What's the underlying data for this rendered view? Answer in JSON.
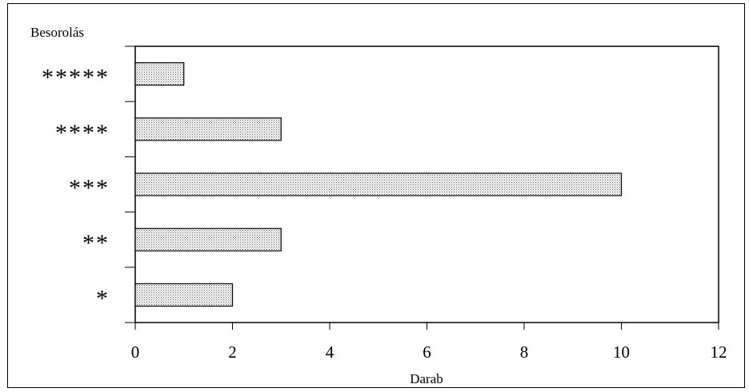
{
  "chart_data": {
    "type": "bar",
    "orientation": "horizontal",
    "title": "",
    "ylabel": "Besorolás",
    "xlabel": "Darab",
    "categories": [
      "*****",
      "****",
      "***",
      "**",
      "*"
    ],
    "values": [
      1,
      3,
      10,
      3,
      2
    ],
    "xlim": [
      0,
      12
    ],
    "xticks": [
      "0",
      "2",
      "4",
      "6",
      "8",
      "10",
      "12"
    ],
    "grid": false,
    "legend": "none",
    "bar_fill": "stippled-gray"
  }
}
